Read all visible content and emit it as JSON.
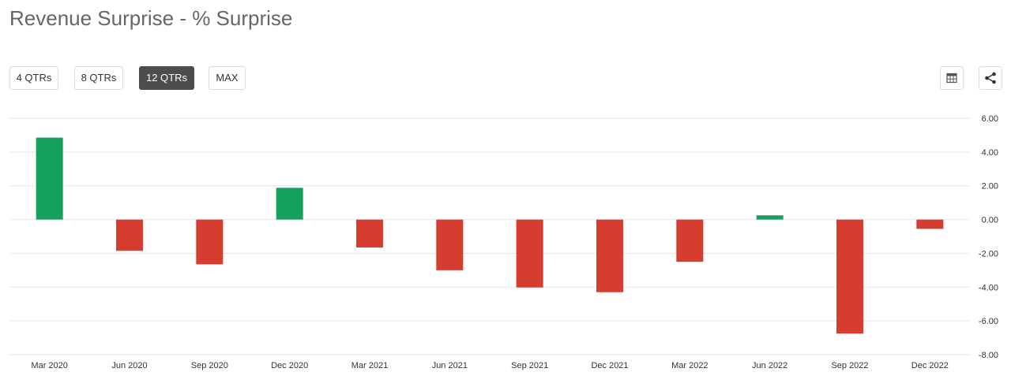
{
  "title": "Revenue Surprise - % Surprise",
  "range_buttons": [
    {
      "label": "4 QTRs",
      "active": false
    },
    {
      "label": "8 QTRs",
      "active": false
    },
    {
      "label": "12 QTRs",
      "active": true
    },
    {
      "label": "MAX",
      "active": false
    }
  ],
  "toolbar": {
    "table_icon": "table-icon",
    "share_icon": "share-icon"
  },
  "colors": {
    "positive": "#16a05d",
    "negative": "#d63c30",
    "grid": "#e6e6e6",
    "active_button": "#4d4d4d"
  },
  "chart_data": {
    "type": "bar",
    "title": "",
    "xlabel": "",
    "ylabel": "",
    "categories": [
      "Mar 2020",
      "Jun 2020",
      "Sep 2020",
      "Dec 2020",
      "Mar 2021",
      "Jun 2021",
      "Sep 2021",
      "Dec 2021",
      "Mar 2022",
      "Jun 2022",
      "Sep 2022",
      "Dec 2022"
    ],
    "series": [
      {
        "values": [
          4.85,
          -1.85,
          -2.65,
          1.88,
          -1.65,
          -3.0,
          -4.02,
          -4.3,
          -2.5,
          0.25,
          -6.75,
          -0.55
        ]
      }
    ],
    "ylim": [
      -8,
      6
    ],
    "yticks": [
      "6.00",
      "4.00",
      "2.00",
      "0.00",
      "-2.00",
      "-4.00",
      "-6.00",
      "-8.00"
    ],
    "ytick_values": [
      6,
      4,
      2,
      0,
      -2,
      -4,
      -6,
      -8
    ],
    "yaxis_position": "right",
    "grid": true,
    "legend": "none"
  }
}
